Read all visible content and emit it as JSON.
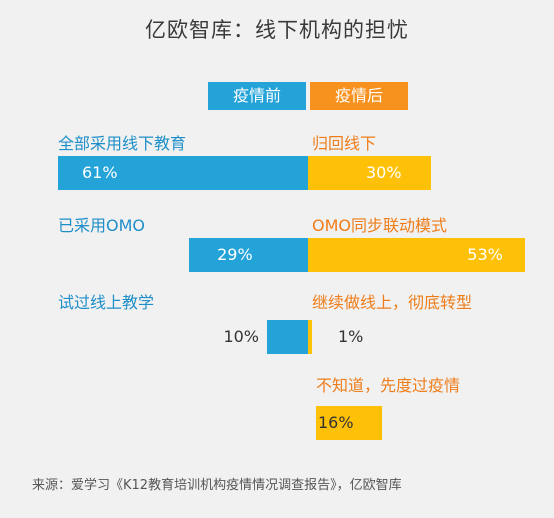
{
  "title": "亿欧智库：线下机构的担忧",
  "legend": {
    "before": "疫情前",
    "after": "疫情后"
  },
  "colors": {
    "before": "#24a3d9",
    "after": "#ffc107",
    "before_label": "#1f8fc9",
    "after_label": "#ef7d1a",
    "legend_after": "#f7921e"
  },
  "chart_data": {
    "type": "bar",
    "orientation": "diverging-horizontal",
    "series": [
      {
        "name": "疫情前",
        "categories": [
          "全部采用线下教育",
          "已采用OMO",
          "试过线上教学"
        ],
        "values": [
          61,
          29,
          10
        ],
        "labels": [
          "61%",
          "29%",
          "10%"
        ]
      },
      {
        "name": "疫情后",
        "categories": [
          "归回线下",
          "OMO同步联动模式",
          "继续做线上，彻底转型",
          "不知道，先度过疫情"
        ],
        "values": [
          30,
          53,
          1,
          16
        ],
        "labels": [
          "30%",
          "53%",
          "1%",
          "16%"
        ]
      }
    ],
    "unit": "%"
  },
  "source": "来源：爱学习《K12教育培训机构疫情情况调查报告》，亿欧智库"
}
